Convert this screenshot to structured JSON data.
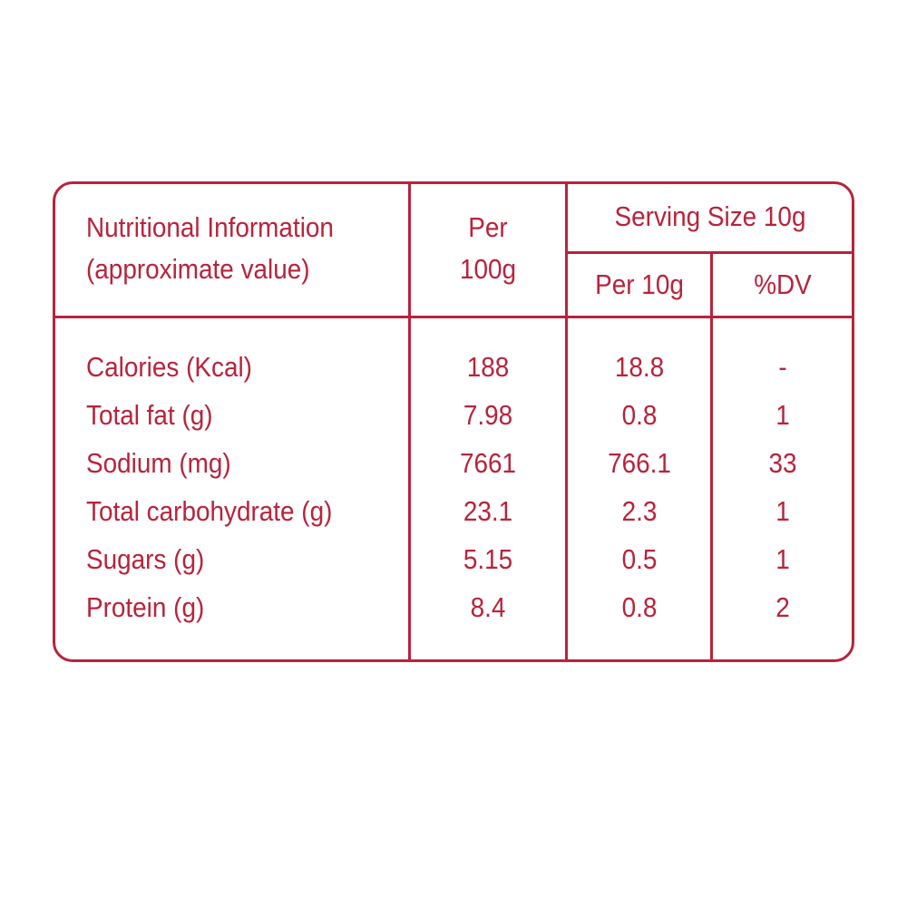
{
  "colors": {
    "accent": "#b8233c",
    "background": "#ffffff"
  },
  "header": {
    "info_line1": "Nutritional Information",
    "info_line2": "(approximate value)",
    "per100_line1": "Per",
    "per100_line2": "100g",
    "serving_size": "Serving Size 10g",
    "per10": "Per 10g",
    "dv": "%DV"
  },
  "rows": [
    {
      "name": "Calories (Kcal)",
      "per100": "188",
      "per10": "18.8",
      "dv": "-"
    },
    {
      "name": "Total fat (g)",
      "per100": "7.98",
      "per10": "0.8",
      "dv": "1"
    },
    {
      "name": "Sodium (mg)",
      "per100": "7661",
      "per10": "766.1",
      "dv": "33"
    },
    {
      "name": "Total carbohydrate (g)",
      "per100": "23.1",
      "per10": "2.3",
      "dv": "1"
    },
    {
      "name": "Sugars (g)",
      "per100": "5.15",
      "per10": "0.5",
      "dv": "1"
    },
    {
      "name": "Protein (g)",
      "per100": "8.4",
      "per10": "0.8",
      "dv": "2"
    }
  ]
}
